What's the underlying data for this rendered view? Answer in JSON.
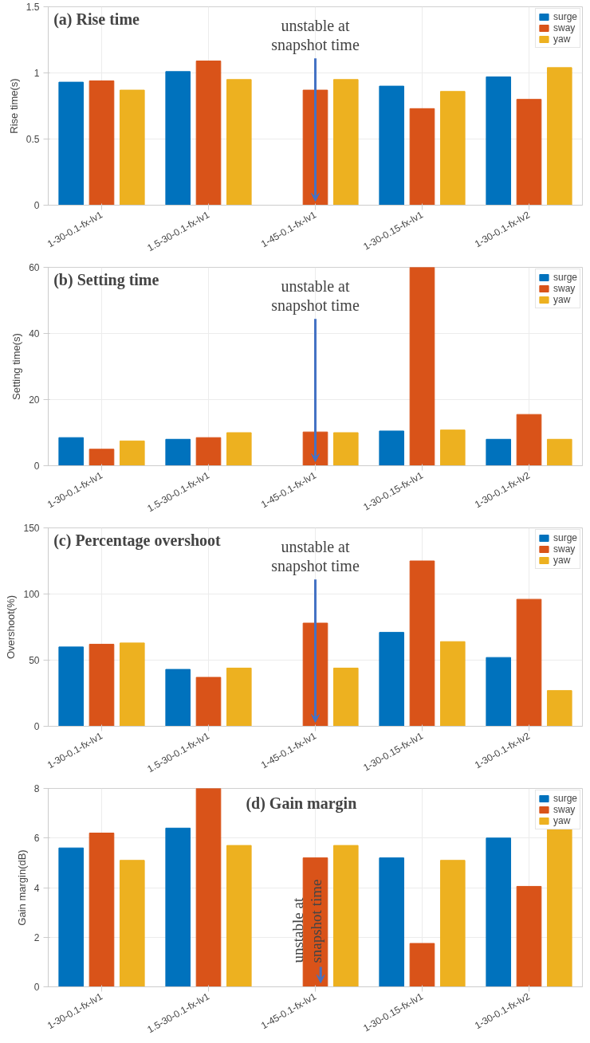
{
  "chart_data": [
    {
      "type": "bar",
      "title": "(a) Rise time",
      "ylabel": "Rise time(s)",
      "categories": [
        "1-30-0.1-fx-lv1",
        "1.5-30-0.1-fx-lv1",
        "1-45-0.1-fx-lv1",
        "1-30-0.15-fx-lv1",
        "1-30-0.1-fx-lv2"
      ],
      "series": [
        {
          "name": "surge",
          "color": "#0072bd",
          "values": [
            0.93,
            1.01,
            null,
            0.9,
            0.97
          ]
        },
        {
          "name": "sway",
          "color": "#d95319",
          "values": [
            0.94,
            1.09,
            0.87,
            0.73,
            0.8
          ]
        },
        {
          "name": "yaw",
          "color": "#edb120",
          "values": [
            0.87,
            0.95,
            0.95,
            0.86,
            1.04
          ]
        }
      ],
      "ylim": [
        0,
        1.5
      ],
      "yticks": [
        0,
        0.5,
        1,
        1.5
      ],
      "grid": true,
      "legend": "top right",
      "annotations": [
        {
          "text": "unstable at\nsnapshot time",
          "x": "1-45-0.1-fx-lv1",
          "y": 0
        }
      ]
    },
    {
      "type": "bar",
      "title": "(b) Setting time",
      "ylabel": "Setting time(s)",
      "categories": [
        "1-30-0.1-fx-lv1",
        "1.5-30-0.1-fx-lv1",
        "1-45-0.1-fx-lv1",
        "1-30-0.15-fx-lv1",
        "1-30-0.1-fx-lv2"
      ],
      "series": [
        {
          "name": "surge",
          "color": "#0072bd",
          "values": [
            8.5,
            8,
            null,
            10.5,
            8
          ]
        },
        {
          "name": "sway",
          "color": "#d95319",
          "values": [
            5,
            8.5,
            10.2,
            60,
            15.5
          ]
        },
        {
          "name": "yaw",
          "color": "#edb120",
          "values": [
            7.5,
            10,
            10,
            10.8,
            8
          ]
        }
      ],
      "ylim": [
        0,
        60
      ],
      "yticks": [
        0,
        20,
        40,
        60
      ],
      "grid": true,
      "legend": "top right",
      "annotations": [
        {
          "text": "unstable at\nsnapshot time",
          "x": "1-45-0.1-fx-lv1",
          "y": 0
        }
      ]
    },
    {
      "type": "bar",
      "title": "(c) Percentage overshoot",
      "ylabel": "Overshoot(%)",
      "categories": [
        "1-30-0.1-fx-lv1",
        "1.5-30-0.1-fx-lv1",
        "1-45-0.1-fx-lv1",
        "1-30-0.15-fx-lv1",
        "1-30-0.1-fx-lv2"
      ],
      "series": [
        {
          "name": "surge",
          "color": "#0072bd",
          "values": [
            60,
            43,
            null,
            71,
            52
          ]
        },
        {
          "name": "sway",
          "color": "#d95319",
          "values": [
            62,
            37,
            78,
            125,
            96
          ]
        },
        {
          "name": "yaw",
          "color": "#edb120",
          "values": [
            63,
            44,
            44,
            64,
            27
          ]
        }
      ],
      "ylim": [
        0,
        150
      ],
      "yticks": [
        0,
        50,
        100,
        150
      ],
      "grid": true,
      "legend": "top right",
      "annotations": [
        {
          "text": "unstable at\nsnapshot time",
          "x": "1-45-0.1-fx-lv1",
          "y": 0
        }
      ]
    },
    {
      "type": "bar",
      "title": "(d) Gain margin",
      "ylabel": "Gain margin(dB)",
      "categories": [
        "1-30-0.1-fx-lv1",
        "1.5-30-0.1-fx-lv1",
        "1-45-0.1-fx-lv1",
        "1-30-0.15-fx-lv1",
        "1-30-0.1-fx-lv2"
      ],
      "series": [
        {
          "name": "surge",
          "color": "#0072bd",
          "values": [
            5.6,
            6.4,
            null,
            5.2,
            6.0
          ]
        },
        {
          "name": "sway",
          "color": "#d95319",
          "values": [
            6.2,
            8,
            5.2,
            1.75,
            4.05
          ]
        },
        {
          "name": "yaw",
          "color": "#edb120",
          "values": [
            5.1,
            5.7,
            5.7,
            5.1,
            6.35
          ]
        }
      ],
      "ylim": [
        0,
        8
      ],
      "yticks": [
        0,
        2,
        4,
        6,
        8
      ],
      "grid": true,
      "legend": "top right",
      "annotations": [
        {
          "text": "unstable at\nsnapshot time",
          "x": "1-45-0.1-fx-lv1",
          "y": 0
        }
      ]
    }
  ]
}
